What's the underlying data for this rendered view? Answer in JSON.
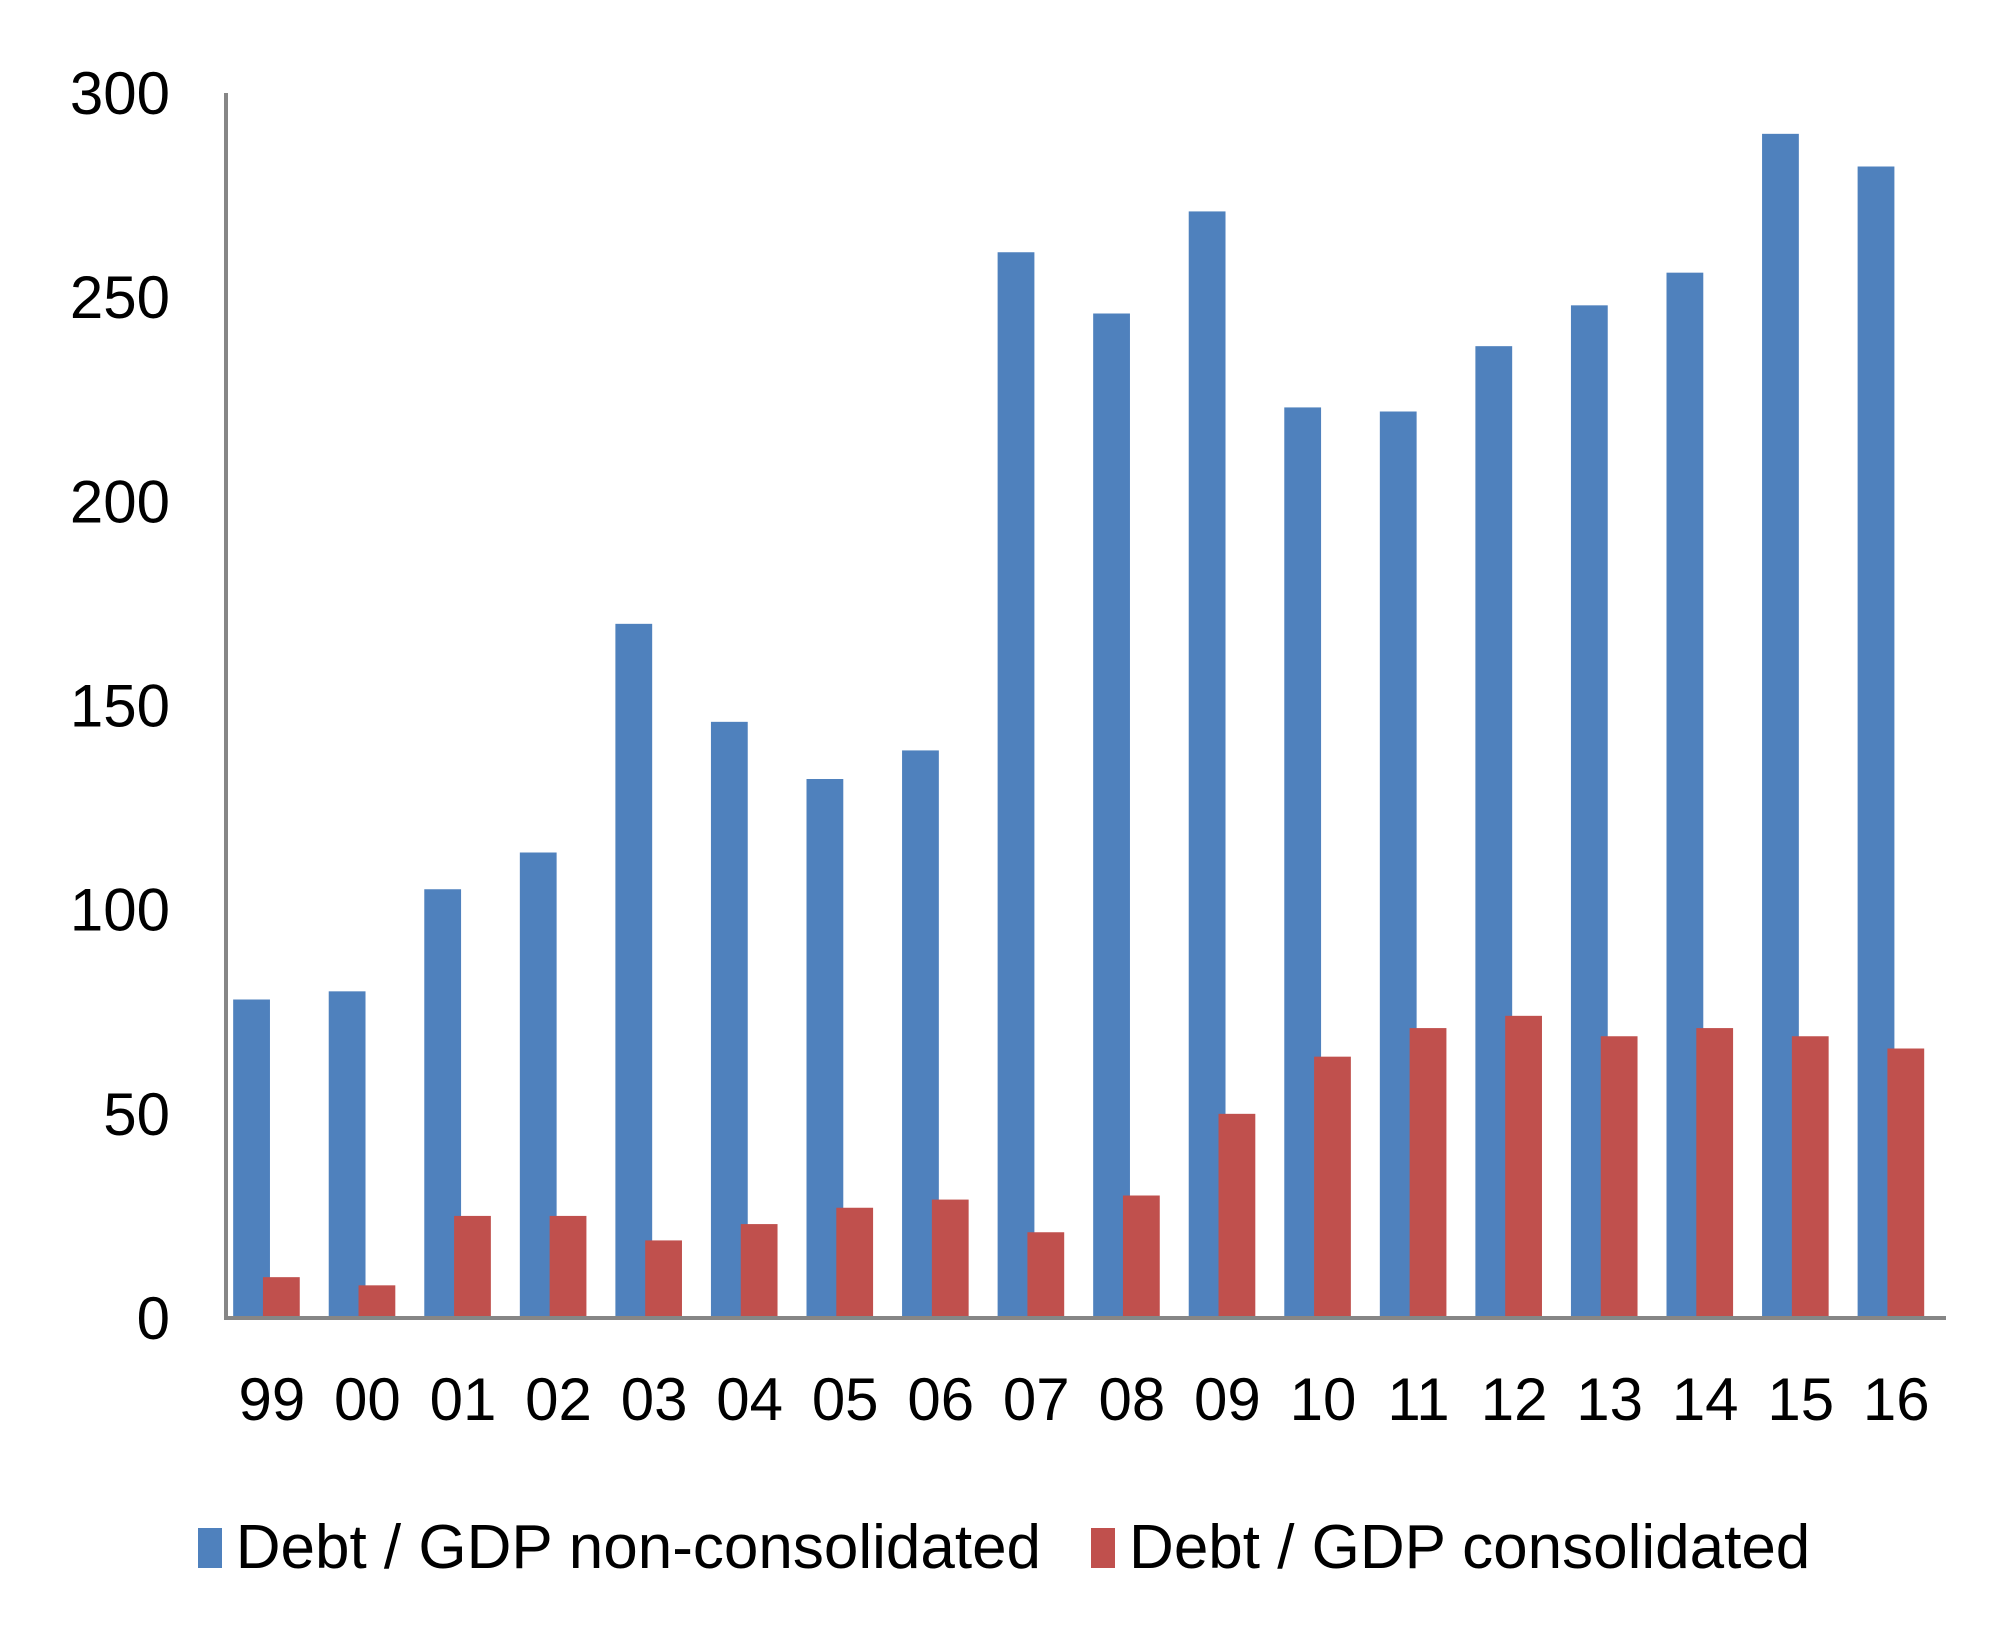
{
  "chart_data": {
    "type": "bar",
    "title": "",
    "xlabel": "",
    "ylabel": "",
    "ylim": [
      0,
      300
    ],
    "yticks": [
      0,
      50,
      100,
      150,
      200,
      250,
      300
    ],
    "ytick_labels": [
      "0",
      "50",
      "100",
      "150",
      "200",
      "250",
      "300"
    ],
    "grid": false,
    "legend_position": "bottom",
    "categories": [
      "99",
      "00",
      "01",
      "02",
      "03",
      "04",
      "05",
      "06",
      "07",
      "08",
      "09",
      "10",
      "11",
      "12",
      "13",
      "14",
      "15",
      "16"
    ],
    "series": [
      {
        "name": "Debt / GDP non-consolidated",
        "color": "#4F81BD",
        "values": [
          78,
          80,
          105,
          114,
          170,
          146,
          132,
          139,
          261,
          246,
          271,
          223,
          222,
          238,
          248,
          256,
          290,
          282
        ]
      },
      {
        "name": "Debt / GDP consolidated",
        "color": "#C0504D",
        "values": [
          10,
          8,
          25,
          25,
          19,
          23,
          27,
          29,
          21,
          30,
          50,
          64,
          71,
          74,
          69,
          71,
          69,
          66
        ]
      }
    ]
  }
}
